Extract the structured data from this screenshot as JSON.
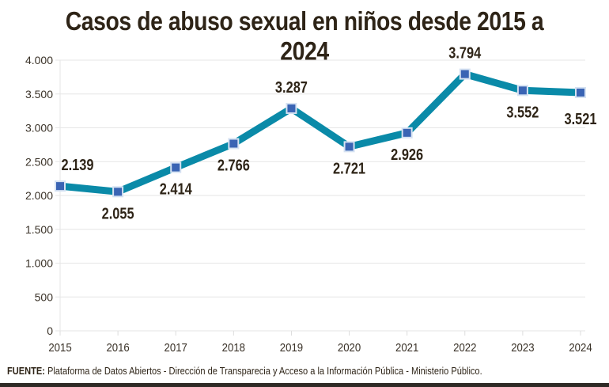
{
  "chart_data": {
    "type": "line",
    "title": "Casos de abuso sexual en niños desde 2015 a 2024",
    "categories": [
      "2015",
      "2016",
      "2017",
      "2018",
      "2019",
      "2020",
      "2021",
      "2022",
      "2023",
      "2024"
    ],
    "values": [
      2139,
      2055,
      2414,
      2766,
      3287,
      2721,
      2926,
      3794,
      3552,
      3521
    ],
    "data_labels": [
      "2.139",
      "2.055",
      "2.414",
      "2.766",
      "3.287",
      "2.721",
      "2.926",
      "3.794",
      "3.552",
      "3.521"
    ],
    "yticks": [
      0,
      500,
      1000,
      1500,
      2000,
      2500,
      3000,
      3500,
      4000
    ],
    "ytick_labels": [
      "0",
      "500",
      "1.000",
      "1.500",
      "2.000",
      "2.500",
      "3.000",
      "3.500",
      "4.000"
    ],
    "ylim": [
      0,
      4000
    ],
    "xlabel": "",
    "ylabel": "",
    "grid": "horizontal",
    "colors": {
      "line": "#0a8aa8",
      "marker": "#3a64b4",
      "marker_border": "#d6e2f2",
      "text": "#2e2417"
    }
  },
  "source": {
    "label": "FUENTE:",
    "text": " Plataforma de Datos Abiertos - Dirección de Transparecia y Acceso a la Información Pública - Ministerio Público."
  }
}
